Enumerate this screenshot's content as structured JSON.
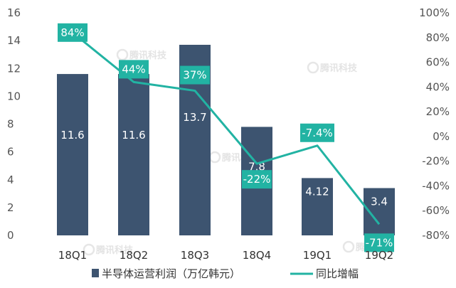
{
  "chart_data": {
    "type": "bar",
    "title": "",
    "categories": [
      "18Q1",
      "18Q2",
      "18Q3",
      "18Q4",
      "19Q1",
      "19Q2"
    ],
    "series": [
      {
        "name": "半导体运营利润（万亿韩元）",
        "type": "bar",
        "axis": "left",
        "values": [
          11.6,
          11.6,
          13.7,
          7.8,
          4.12,
          3.4
        ],
        "labels": [
          "11.6",
          "11.6",
          "13.7",
          "7.8",
          "4.12",
          "3.4"
        ],
        "color": "#3d5470"
      },
      {
        "name": "同比增幅",
        "type": "line",
        "axis": "right",
        "values": [
          84,
          44,
          37,
          -22,
          -7.4,
          -71
        ],
        "labels": [
          "84%",
          "44%",
          "37%",
          "-22%",
          "-7.4%",
          "-71%"
        ],
        "color": "#22b3a3"
      }
    ],
    "y_left": {
      "min": 0,
      "max": 16,
      "step": 2
    },
    "y_right": {
      "min": -80,
      "max": 100,
      "step": 20,
      "suffix": "%"
    },
    "watermark": "腾讯科技"
  }
}
